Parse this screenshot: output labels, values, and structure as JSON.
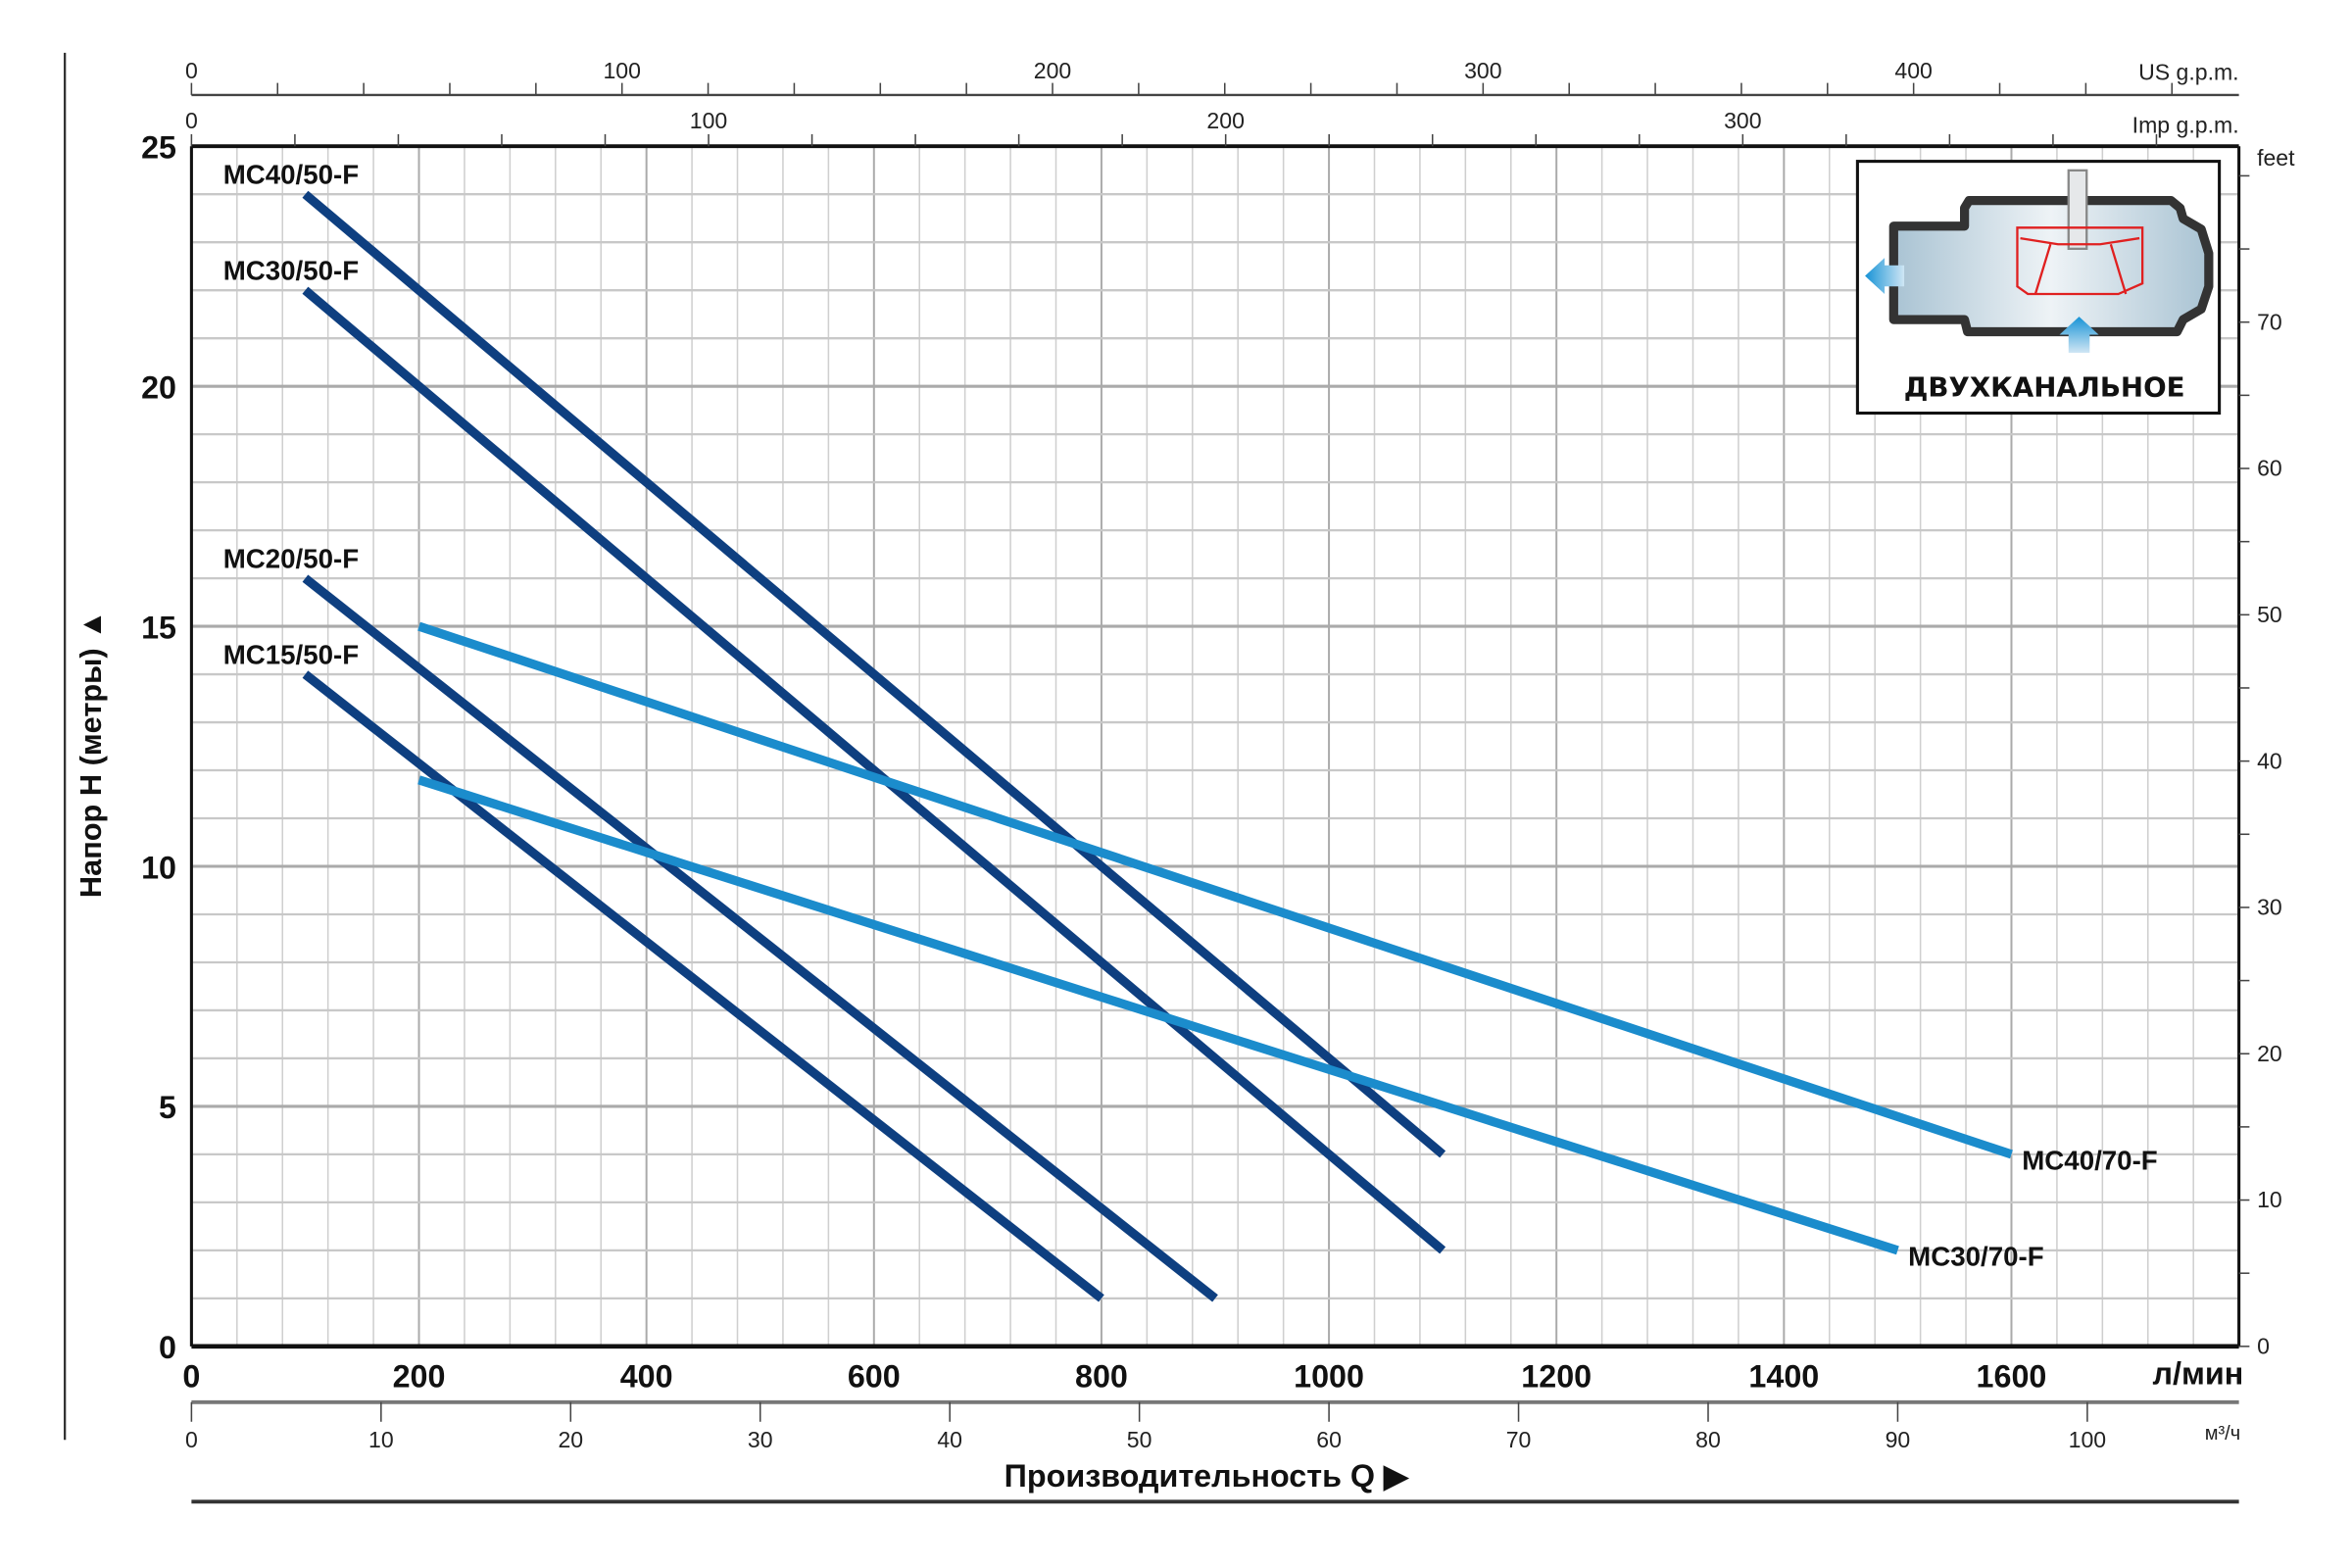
{
  "chart_data": {
    "type": "line",
    "title": "",
    "xlabel": "Производительность Q",
    "xlabel_arrow": "▶",
    "ylabel": "Напор H (метры)",
    "ylabel_arrow": "▲",
    "x_unit": "л/мин",
    "xlim": [
      0,
      1800
    ],
    "ylim": [
      0,
      25
    ],
    "grid": true,
    "x_ticks": [
      0,
      200,
      400,
      600,
      800,
      1000,
      1200,
      1400,
      1600
    ],
    "y_ticks": [
      0,
      5,
      10,
      15,
      20,
      25
    ],
    "secondary_axes": {
      "us_gpm": {
        "label": "US g.p.m.",
        "ticks": [
          0,
          100,
          200,
          300,
          400
        ],
        "l_per_min_per_unit": 3.785
      },
      "imp_gpm": {
        "label": "Imp g.p.m.",
        "ticks": [
          0,
          100,
          200,
          300
        ],
        "l_per_min_per_unit": 4.546
      },
      "feet": {
        "label": "feet",
        "ticks": [
          0,
          10,
          20,
          30,
          40,
          50,
          60,
          70
        ],
        "m_per_unit": 0.3048
      },
      "m3h": {
        "label": "м³/ч",
        "ticks": [
          0,
          10,
          20,
          30,
          40,
          50,
          60,
          70,
          80,
          90,
          100
        ],
        "l_per_min_per_unit": 16.667
      }
    },
    "series": [
      {
        "name": "MC40/50-F",
        "color": "#0e3f80",
        "label_pos": "start",
        "points": [
          [
            100,
            24
          ],
          [
            1100,
            4
          ]
        ]
      },
      {
        "name": "MC30/50-F",
        "color": "#0e3f80",
        "label_pos": "start",
        "points": [
          [
            100,
            22
          ],
          [
            1100,
            2
          ]
        ]
      },
      {
        "name": "MC20/50-F",
        "color": "#0e3f80",
        "label_pos": "start",
        "points": [
          [
            100,
            16
          ],
          [
            900,
            1
          ]
        ]
      },
      {
        "name": "MC15/50-F",
        "color": "#0e3f80",
        "label_pos": "start",
        "points": [
          [
            100,
            14
          ],
          [
            800,
            1
          ]
        ]
      },
      {
        "name": "MC40/70-F",
        "color": "#1b8ccc",
        "label_pos": "end",
        "points": [
          [
            200,
            15
          ],
          [
            1600,
            4
          ]
        ]
      },
      {
        "name": "MC30/70-F",
        "color": "#1b8ccc",
        "label_pos": "end",
        "points": [
          [
            200,
            11.8
          ],
          [
            1500,
            2
          ]
        ]
      }
    ],
    "inset": {
      "label": "ДВУХКАНАЛЬНОЕ"
    }
  }
}
